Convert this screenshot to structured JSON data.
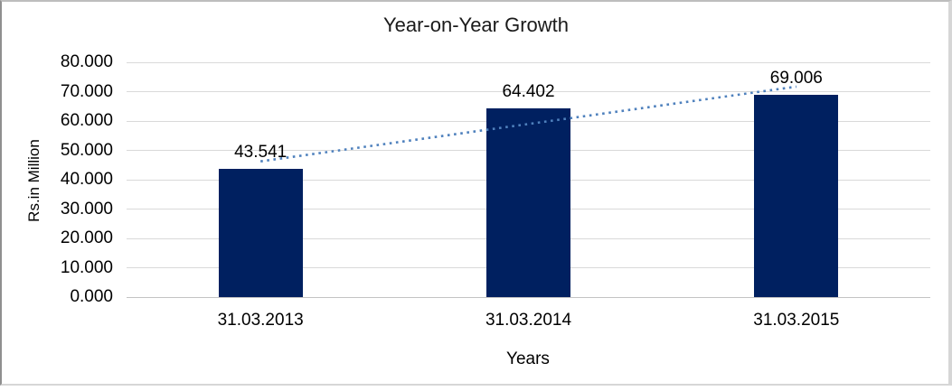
{
  "chart_data": {
    "type": "bar",
    "title": "Year-on-Year Growth",
    "categories": [
      "31.03.2013",
      "31.03.2014",
      "31.03.2015"
    ],
    "values": [
      43.541,
      64.402,
      69.006
    ],
    "data_labels": [
      "43.541",
      "64.402",
      "69.006"
    ],
    "xlabel": "Years",
    "ylabel": "Rs.in Million",
    "ylim": [
      0,
      80
    ],
    "ytick_values": [
      0,
      10,
      20,
      30,
      40,
      50,
      60,
      70,
      80
    ],
    "ytick_labels": [
      "0.000",
      "10.000",
      "20.000",
      "30.000",
      "40.000",
      "50.000",
      "60.000",
      "70.000",
      "80.000"
    ],
    "grid": true,
    "legend": "none",
    "trendline": {
      "type": "linear",
      "style": "dotted"
    },
    "colors": {
      "bar": "#002060",
      "trendline": "#4F81BD",
      "gridline": "#D9D9D9",
      "axis_line": "#C3C3C3",
      "text": "#000000"
    }
  }
}
